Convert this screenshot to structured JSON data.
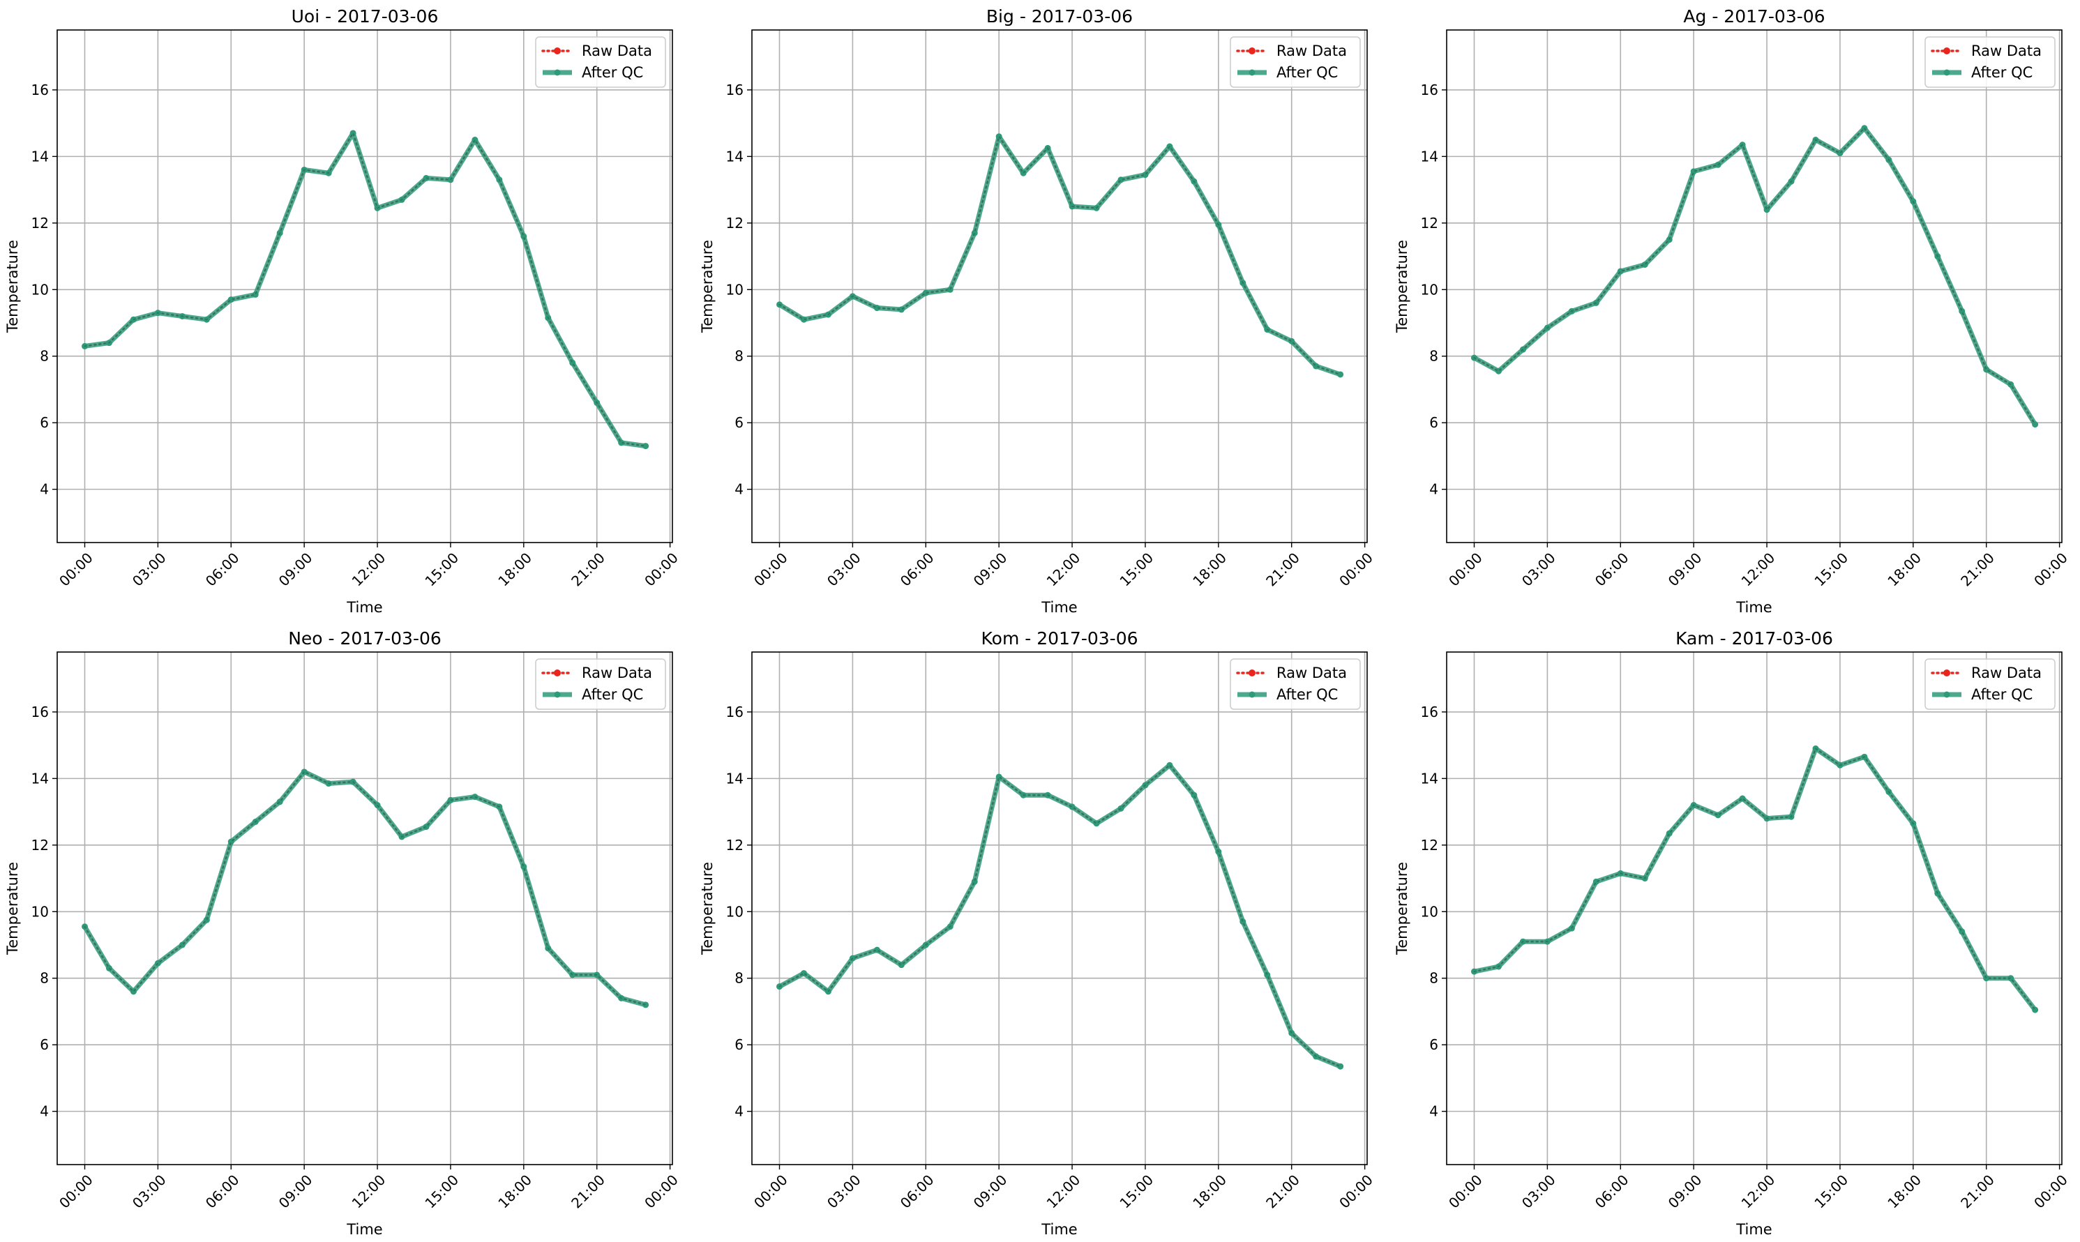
{
  "chart_data": [
    {
      "type": "line",
      "title": "Uoi - 2017-03-06",
      "xlabel": "Time",
      "ylabel": "Temperature",
      "x": [
        "00:00",
        "01:00",
        "02:00",
        "03:00",
        "04:00",
        "05:00",
        "06:00",
        "07:00",
        "08:00",
        "09:00",
        "10:00",
        "11:00",
        "12:00",
        "13:00",
        "14:00",
        "15:00",
        "16:00",
        "17:00",
        "18:00",
        "19:00",
        "20:00",
        "21:00",
        "22:00",
        "23:00"
      ],
      "x_ticks": [
        "00:00",
        "03:00",
        "06:00",
        "09:00",
        "12:00",
        "15:00",
        "18:00",
        "21:00",
        "00:00"
      ],
      "y_ticks": [
        4,
        6,
        8,
        10,
        12,
        14,
        16
      ],
      "ylim": [
        2.4,
        17.8
      ],
      "grid": true,
      "legend_position": "top-right",
      "series": [
        {
          "name": "Raw Data",
          "color": "#e8261e",
          "style": "dotted",
          "values": [
            8.3,
            8.4,
            9.1,
            9.3,
            9.2,
            9.1,
            9.7,
            9.85,
            11.7,
            13.6,
            13.5,
            14.7,
            12.45,
            12.7,
            13.35,
            13.3,
            14.5,
            13.3,
            11.6,
            9.15,
            7.8,
            6.6,
            5.4,
            5.3
          ]
        },
        {
          "name": "After QC",
          "color": "#2e9a7a",
          "style": "solid",
          "values": [
            8.3,
            8.4,
            9.1,
            9.3,
            9.2,
            9.1,
            9.7,
            9.85,
            11.7,
            13.6,
            13.5,
            14.7,
            12.45,
            12.7,
            13.35,
            13.3,
            14.5,
            13.3,
            11.6,
            9.15,
            7.8,
            6.6,
            5.4,
            5.3
          ]
        }
      ]
    },
    {
      "type": "line",
      "title": "Big - 2017-03-06",
      "xlabel": "Time",
      "ylabel": "Temperature",
      "x": [
        "00:00",
        "01:00",
        "02:00",
        "03:00",
        "04:00",
        "05:00",
        "06:00",
        "07:00",
        "08:00",
        "09:00",
        "10:00",
        "11:00",
        "12:00",
        "13:00",
        "14:00",
        "15:00",
        "16:00",
        "17:00",
        "18:00",
        "19:00",
        "20:00",
        "21:00",
        "22:00",
        "23:00"
      ],
      "x_ticks": [
        "00:00",
        "03:00",
        "06:00",
        "09:00",
        "12:00",
        "15:00",
        "18:00",
        "21:00",
        "00:00"
      ],
      "y_ticks": [
        4,
        6,
        8,
        10,
        12,
        14,
        16
      ],
      "ylim": [
        2.4,
        17.8
      ],
      "grid": true,
      "legend_position": "top-right",
      "series": [
        {
          "name": "Raw Data",
          "color": "#e8261e",
          "style": "dotted",
          "values": [
            9.55,
            9.1,
            9.25,
            9.8,
            9.45,
            9.4,
            9.9,
            10.0,
            11.7,
            14.6,
            13.5,
            14.25,
            12.5,
            12.45,
            13.3,
            13.45,
            14.3,
            13.25,
            11.95,
            10.2,
            8.8,
            8.45,
            7.7,
            7.45
          ]
        },
        {
          "name": "After QC",
          "color": "#2e9a7a",
          "style": "solid",
          "values": [
            9.55,
            9.1,
            9.25,
            9.8,
            9.45,
            9.4,
            9.9,
            10.0,
            11.7,
            14.6,
            13.5,
            14.25,
            12.5,
            12.45,
            13.3,
            13.45,
            14.3,
            13.25,
            11.95,
            10.2,
            8.8,
            8.45,
            7.7,
            7.45
          ]
        }
      ]
    },
    {
      "type": "line",
      "title": "Ag - 2017-03-06",
      "xlabel": "Time",
      "ylabel": "Temperature",
      "x": [
        "00:00",
        "01:00",
        "02:00",
        "03:00",
        "04:00",
        "05:00",
        "06:00",
        "07:00",
        "08:00",
        "09:00",
        "10:00",
        "11:00",
        "12:00",
        "13:00",
        "14:00",
        "15:00",
        "16:00",
        "17:00",
        "18:00",
        "19:00",
        "20:00",
        "21:00",
        "22:00",
        "23:00"
      ],
      "x_ticks": [
        "00:00",
        "03:00",
        "06:00",
        "09:00",
        "12:00",
        "15:00",
        "18:00",
        "21:00",
        "00:00"
      ],
      "y_ticks": [
        4,
        6,
        8,
        10,
        12,
        14,
        16
      ],
      "ylim": [
        2.4,
        17.8
      ],
      "grid": true,
      "legend_position": "top-right",
      "series": [
        {
          "name": "Raw Data",
          "color": "#e8261e",
          "style": "dotted",
          "values": [
            7.95,
            7.55,
            8.2,
            8.85,
            9.35,
            9.6,
            10.55,
            10.75,
            11.5,
            13.55,
            13.75,
            14.35,
            12.4,
            13.25,
            14.5,
            14.1,
            14.85,
            13.9,
            12.65,
            11.0,
            9.35,
            7.6,
            7.15,
            5.95
          ]
        },
        {
          "name": "After QC",
          "color": "#2e9a7a",
          "style": "solid",
          "values": [
            7.95,
            7.55,
            8.2,
            8.85,
            9.35,
            9.6,
            10.55,
            10.75,
            11.5,
            13.55,
            13.75,
            14.35,
            12.4,
            13.25,
            14.5,
            14.1,
            14.85,
            13.9,
            12.65,
            11.0,
            9.35,
            7.6,
            7.15,
            5.95
          ]
        }
      ]
    },
    {
      "type": "line",
      "title": "Neo - 2017-03-06",
      "xlabel": "Time",
      "ylabel": "Temperature",
      "x": [
        "00:00",
        "01:00",
        "02:00",
        "03:00",
        "04:00",
        "05:00",
        "06:00",
        "07:00",
        "08:00",
        "09:00",
        "10:00",
        "11:00",
        "12:00",
        "13:00",
        "14:00",
        "15:00",
        "16:00",
        "17:00",
        "18:00",
        "19:00",
        "20:00",
        "21:00",
        "22:00",
        "23:00"
      ],
      "x_ticks": [
        "00:00",
        "03:00",
        "06:00",
        "09:00",
        "12:00",
        "15:00",
        "18:00",
        "21:00",
        "00:00"
      ],
      "y_ticks": [
        4,
        6,
        8,
        10,
        12,
        14,
        16
      ],
      "ylim": [
        2.4,
        17.8
      ],
      "grid": true,
      "legend_position": "top-right",
      "series": [
        {
          "name": "Raw Data",
          "color": "#e8261e",
          "style": "dotted",
          "values": [
            9.55,
            8.3,
            7.6,
            8.45,
            9.0,
            9.75,
            12.1,
            12.7,
            13.3,
            14.2,
            13.85,
            13.9,
            13.2,
            12.25,
            12.55,
            13.35,
            13.45,
            13.15,
            11.35,
            8.9,
            8.1,
            8.1,
            7.4,
            7.2
          ]
        },
        {
          "name": "After QC",
          "color": "#2e9a7a",
          "style": "solid",
          "values": [
            9.55,
            8.3,
            7.6,
            8.45,
            9.0,
            9.75,
            12.1,
            12.7,
            13.3,
            14.2,
            13.85,
            13.9,
            13.2,
            12.25,
            12.55,
            13.35,
            13.45,
            13.15,
            11.35,
            8.9,
            8.1,
            8.1,
            7.4,
            7.2
          ]
        }
      ]
    },
    {
      "type": "line",
      "title": "Kom - 2017-03-06",
      "xlabel": "Time",
      "ylabel": "Temperature",
      "x": [
        "00:00",
        "01:00",
        "02:00",
        "03:00",
        "04:00",
        "05:00",
        "06:00",
        "07:00",
        "08:00",
        "09:00",
        "10:00",
        "11:00",
        "12:00",
        "13:00",
        "14:00",
        "15:00",
        "16:00",
        "17:00",
        "18:00",
        "19:00",
        "20:00",
        "21:00",
        "22:00",
        "23:00"
      ],
      "x_ticks": [
        "00:00",
        "03:00",
        "06:00",
        "09:00",
        "12:00",
        "15:00",
        "18:00",
        "21:00",
        "00:00"
      ],
      "y_ticks": [
        4,
        6,
        8,
        10,
        12,
        14,
        16
      ],
      "ylim": [
        2.4,
        17.8
      ],
      "grid": true,
      "legend_position": "top-right",
      "series": [
        {
          "name": "Raw Data",
          "color": "#e8261e",
          "style": "dotted",
          "values": [
            7.75,
            8.15,
            7.6,
            8.6,
            8.85,
            8.4,
            9.0,
            9.55,
            10.9,
            14.05,
            13.5,
            13.5,
            13.15,
            12.65,
            13.1,
            13.8,
            14.4,
            13.5,
            11.8,
            9.7,
            8.1,
            6.35,
            5.65,
            5.35
          ]
        },
        {
          "name": "After QC",
          "color": "#2e9a7a",
          "style": "solid",
          "values": [
            7.75,
            8.15,
            7.6,
            8.6,
            8.85,
            8.4,
            9.0,
            9.55,
            10.9,
            14.05,
            13.5,
            13.5,
            13.15,
            12.65,
            13.1,
            13.8,
            14.4,
            13.5,
            11.8,
            9.7,
            8.1,
            6.35,
            5.65,
            5.35
          ]
        }
      ]
    },
    {
      "type": "line",
      "title": "Kam - 2017-03-06",
      "xlabel": "Time",
      "ylabel": "Temperature",
      "x": [
        "00:00",
        "01:00",
        "02:00",
        "03:00",
        "04:00",
        "05:00",
        "06:00",
        "07:00",
        "08:00",
        "09:00",
        "10:00",
        "11:00",
        "12:00",
        "13:00",
        "14:00",
        "15:00",
        "16:00",
        "17:00",
        "18:00",
        "19:00",
        "20:00",
        "21:00",
        "22:00",
        "23:00"
      ],
      "x_ticks": [
        "00:00",
        "03:00",
        "06:00",
        "09:00",
        "12:00",
        "15:00",
        "18:00",
        "21:00",
        "00:00"
      ],
      "y_ticks": [
        4,
        6,
        8,
        10,
        12,
        14,
        16
      ],
      "ylim": [
        2.4,
        17.8
      ],
      "grid": true,
      "legend_position": "top-right",
      "series": [
        {
          "name": "Raw Data",
          "color": "#e8261e",
          "style": "dotted",
          "values": [
            8.2,
            8.35,
            9.1,
            9.1,
            9.5,
            10.9,
            11.15,
            11.0,
            12.35,
            13.2,
            12.9,
            13.4,
            12.8,
            12.85,
            14.9,
            14.4,
            14.65,
            13.6,
            12.65,
            10.55,
            9.4,
            8.0,
            8.0,
            7.05
          ]
        },
        {
          "name": "After QC",
          "color": "#2e9a7a",
          "style": "solid",
          "values": [
            8.2,
            8.35,
            9.1,
            9.1,
            9.5,
            10.9,
            11.15,
            11.0,
            12.35,
            13.2,
            12.9,
            13.4,
            12.8,
            12.85,
            14.9,
            14.4,
            14.65,
            13.6,
            12.65,
            10.55,
            9.4,
            8.0,
            8.0,
            7.05
          ]
        }
      ]
    }
  ]
}
